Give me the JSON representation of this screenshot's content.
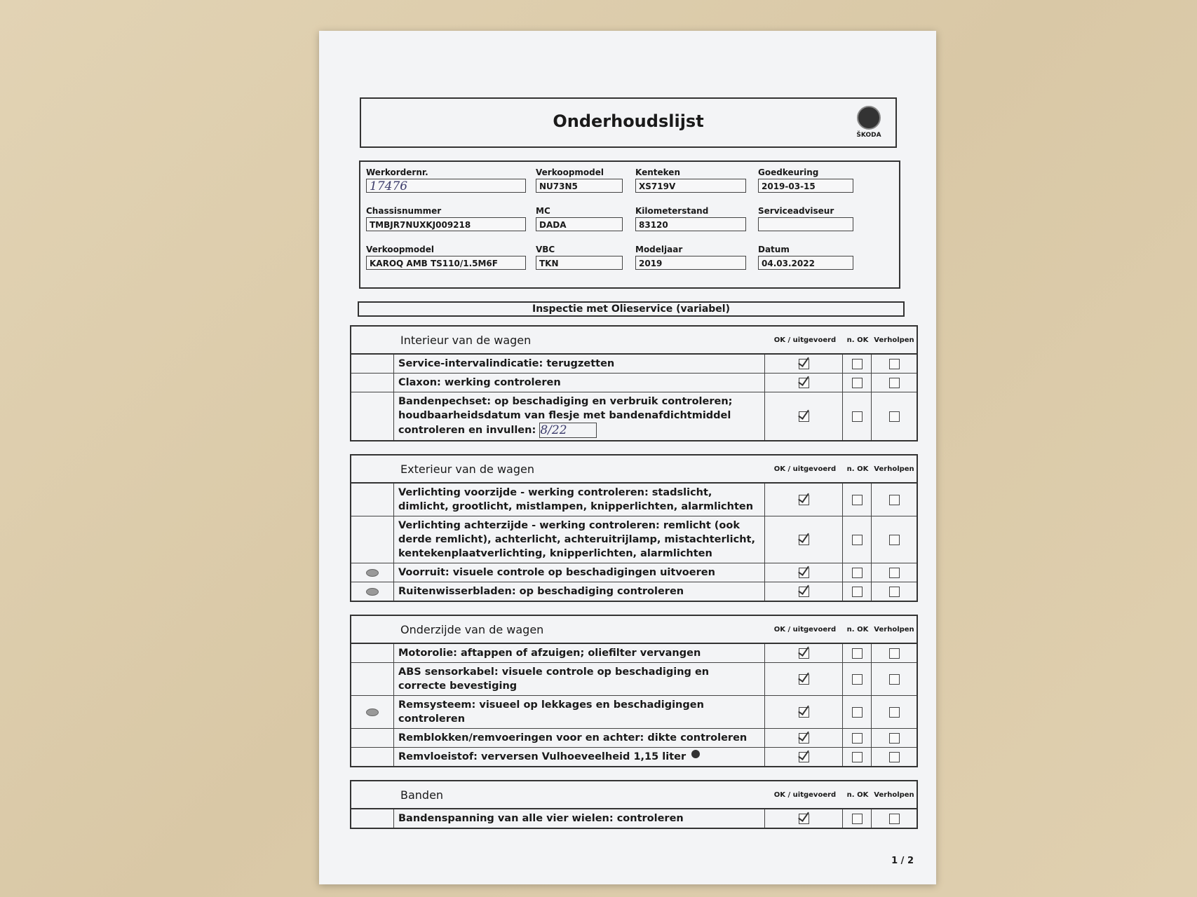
{
  "document": {
    "title": "Onderhoudslijst",
    "brand": "ŠKODA",
    "fields": [
      {
        "label": "Werkordernr.",
        "value": "17476",
        "handwritten": true
      },
      {
        "label": "Verkoopmodel",
        "value": "NU73N5"
      },
      {
        "label": "Kenteken",
        "value": "XS719V"
      },
      {
        "label": "Goedkeuring",
        "value": "2019-03-15"
      },
      {
        "label": "Chassisnummer",
        "value": "TMBJR7NUXKJ009218"
      },
      {
        "label": "MC",
        "value": "DADA"
      },
      {
        "label": "Kilometerstand",
        "value": "83120"
      },
      {
        "label": "Serviceadviseur",
        "value": ""
      },
      {
        "label": "Verkoopmodel",
        "value": "KAROQ AMB TS110/1.5M6F"
      },
      {
        "label": "VBC",
        "value": "TKN"
      },
      {
        "label": "Modeljaar",
        "value": "2019"
      },
      {
        "label": "Datum",
        "value": "04.03.2022"
      }
    ],
    "banner": "Inspectie met Olieservice (variabel)",
    "columns": {
      "ok": "OK / uitgevoerd",
      "nok": "n. OK",
      "fixed": "Verholpen"
    },
    "sections": [
      {
        "title": "Interieur van de wagen",
        "rows": [
          {
            "text": "Service-intervalindicatie: terugzetten",
            "ok": true,
            "nok": false,
            "fixed": false,
            "eye": false
          },
          {
            "text": "Claxon: werking controleren",
            "ok": true,
            "nok": false,
            "fixed": false,
            "eye": false
          },
          {
            "text": "Bandenpechset: op beschadiging en verbruik controleren; houdbaarheidsdatum van flesje met bandenafdichtmiddel controleren en invullen:",
            "input": "8/22",
            "ok": true,
            "nok": false,
            "fixed": false,
            "eye": false
          }
        ]
      },
      {
        "title": "Exterieur van de wagen",
        "rows": [
          {
            "text": "Verlichting voorzijde - werking controleren: stadslicht, dimlicht, grootlicht, mistlampen, knipperlichten, alarmlichten",
            "ok": true,
            "nok": false,
            "fixed": false,
            "eye": false
          },
          {
            "text": "Verlichting achterzijde - werking controleren: remlicht (ook derde remlicht), achterlicht, achteruitrijlamp, mistachterlicht, kentekenplaatverlichting, knipperlichten, alarmlichten",
            "ok": true,
            "nok": false,
            "fixed": false,
            "eye": false
          },
          {
            "text": "Voorruit: visuele controle op beschadigingen uitvoeren",
            "ok": true,
            "nok": false,
            "fixed": false,
            "eye": true
          },
          {
            "text": "Ruitenwisserbladen: op beschadiging controleren",
            "ok": true,
            "nok": false,
            "fixed": false,
            "eye": true
          }
        ]
      },
      {
        "title": "Onderzijde van de wagen",
        "rows": [
          {
            "text": "Motorolie: aftappen of afzuigen; oliefilter vervangen",
            "ok": true,
            "nok": false,
            "fixed": false,
            "eye": false
          },
          {
            "text": "ABS sensorkabel: visuele controle op beschadiging en correcte bevestiging",
            "ok": true,
            "nok": false,
            "fixed": false,
            "eye": false
          },
          {
            "text": "Remsysteem: visueel op lekkages en beschadigingen controleren",
            "ok": true,
            "nok": false,
            "fixed": false,
            "eye": true
          },
          {
            "text": "Remblokken/remvoeringen voor en achter: dikte controleren",
            "ok": true,
            "nok": false,
            "fixed": false,
            "eye": false
          },
          {
            "text": "Remvloeistof: verversen Vulhoeveelheid 1,15 liter",
            "ok": true,
            "nok": false,
            "fixed": false,
            "eye": false,
            "dot": true
          }
        ]
      },
      {
        "title": "Banden",
        "rows": [
          {
            "text": "Bandenspanning van alle vier wielen: controleren",
            "ok": true,
            "nok": false,
            "fixed": false,
            "eye": false
          }
        ]
      }
    ],
    "page": "1 / 2"
  }
}
